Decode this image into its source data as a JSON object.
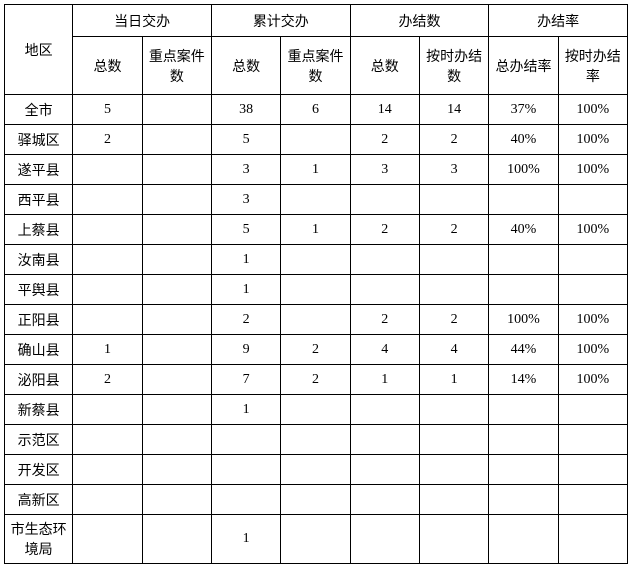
{
  "header": {
    "region": "地区",
    "groups": [
      {
        "label": "当日交办",
        "sub": [
          "总数",
          "重点案件数"
        ]
      },
      {
        "label": "累计交办",
        "sub": [
          "总数",
          "重点案件数"
        ]
      },
      {
        "label": "办结数",
        "sub": [
          "总数",
          "按时办结数"
        ]
      },
      {
        "label": "办结率",
        "sub": [
          "总办结率",
          "按时办结率"
        ]
      }
    ]
  },
  "rows": [
    {
      "region": "全市",
      "cells": [
        "5",
        "",
        "38",
        "6",
        "14",
        "14",
        "37%",
        "100%"
      ]
    },
    {
      "region": "驿城区",
      "cells": [
        "2",
        "",
        "5",
        "",
        "2",
        "2",
        "40%",
        "100%"
      ]
    },
    {
      "region": "遂平县",
      "cells": [
        "",
        "",
        "3",
        "1",
        "3",
        "3",
        "100%",
        "100%"
      ]
    },
    {
      "region": "西平县",
      "cells": [
        "",
        "",
        "3",
        "",
        "",
        "",
        "",
        ""
      ]
    },
    {
      "region": "上蔡县",
      "cells": [
        "",
        "",
        "5",
        "1",
        "2",
        "2",
        "40%",
        "100%"
      ]
    },
    {
      "region": "汝南县",
      "cells": [
        "",
        "",
        "1",
        "",
        "",
        "",
        "",
        ""
      ]
    },
    {
      "region": "平舆县",
      "cells": [
        "",
        "",
        "1",
        "",
        "",
        "",
        "",
        ""
      ]
    },
    {
      "region": "正阳县",
      "cells": [
        "",
        "",
        "2",
        "",
        "2",
        "2",
        "100%",
        "100%"
      ]
    },
    {
      "region": "确山县",
      "cells": [
        "1",
        "",
        "9",
        "2",
        "4",
        "4",
        "44%",
        "100%"
      ]
    },
    {
      "region": "泌阳县",
      "cells": [
        "2",
        "",
        "7",
        "2",
        "1",
        "1",
        "14%",
        "100%"
      ]
    },
    {
      "region": "新蔡县",
      "cells": [
        "",
        "",
        "1",
        "",
        "",
        "",
        "",
        ""
      ]
    },
    {
      "region": "示范区",
      "cells": [
        "",
        "",
        "",
        "",
        "",
        "",
        "",
        ""
      ]
    },
    {
      "region": "开发区",
      "cells": [
        "",
        "",
        "",
        "",
        "",
        "",
        "",
        ""
      ]
    },
    {
      "region": "高新区",
      "cells": [
        "",
        "",
        "",
        "",
        "",
        "",
        "",
        ""
      ]
    },
    {
      "region": "市生态环境局",
      "cells": [
        "",
        "",
        "1",
        "",
        "",
        "",
        "",
        ""
      ]
    }
  ]
}
